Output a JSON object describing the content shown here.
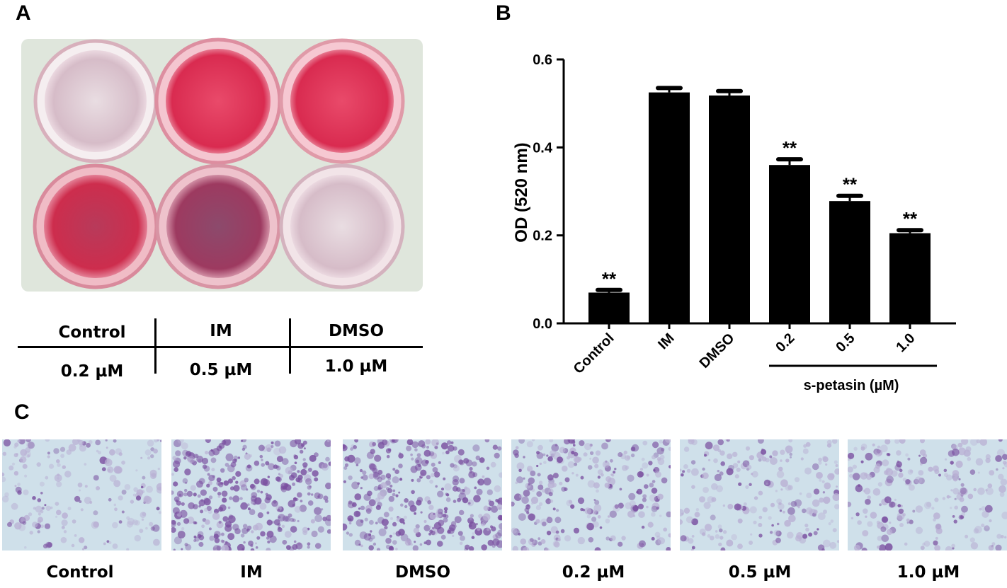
{
  "panels": {
    "a": "A",
    "b": "B",
    "c": "C"
  },
  "plate_table": {
    "row1": [
      "Control",
      "IM",
      "DMSO"
    ],
    "row2": [
      "0.2 µM",
      "0.5 µM",
      "1.0 µM"
    ]
  },
  "colors": {
    "bar": "#000000",
    "stain_strong": "#e0304f",
    "stain_medium": "#c7294a",
    "stain_purple": "#8b3d73",
    "stain_pale": "#d8c8d2",
    "micro_purple": "#7a4fa0",
    "micro_bg": "#cfe0ea"
  },
  "chart_data": {
    "type": "bar",
    "categories": [
      "Control",
      "IM",
      "DMSO",
      "0.2",
      "0.5",
      "1.0"
    ],
    "values": [
      0.07,
      0.525,
      0.518,
      0.36,
      0.278,
      0.205
    ],
    "errors": [
      0.006,
      0.01,
      0.01,
      0.013,
      0.012,
      0.007
    ],
    "significance": [
      "**",
      "",
      "",
      "**",
      "**",
      "**"
    ],
    "ylabel": "OD (520 nm)",
    "ylim": [
      0,
      0.6
    ],
    "yticks": [
      "0.0",
      "0.2",
      "0.4",
      "0.6"
    ],
    "group_label": "s-petasin (µM)",
    "grid": false
  },
  "micrographs": {
    "labels": [
      "Control",
      "IM",
      "DMSO",
      "0.2 µM",
      "0.5 µM",
      "1.0 µM"
    ],
    "stain_intensity": [
      0.25,
      0.85,
      0.8,
      0.55,
      0.3,
      0.35
    ]
  }
}
